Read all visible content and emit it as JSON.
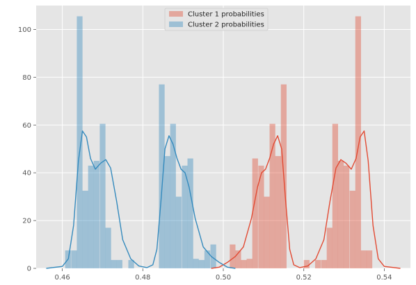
{
  "chart_data": {
    "type": "histogram",
    "style": "ggplot",
    "grid": true,
    "legend_placement": "upper-center",
    "xlim": [
      0.4535,
      0.5465
    ],
    "ylim": [
      0,
      110
    ],
    "x_ticks": [
      0.46,
      0.48,
      0.5,
      0.52,
      0.54
    ],
    "x_tick_labels": [
      "0.46",
      "0.48",
      "0.50",
      "0.52",
      "0.54"
    ],
    "y_ticks": [
      0,
      20,
      40,
      60,
      80,
      100
    ],
    "y_tick_labels": [
      "0",
      "20",
      "40",
      "60",
      "80",
      "100"
    ],
    "bin_width": 0.00142,
    "series": [
      {
        "name": "Cluster 1 probabilities",
        "color": "#E24A33",
        "bins": [
          {
            "x0": 0.5016,
            "height": 10
          },
          {
            "x0": 0.503,
            "height": 7.5
          },
          {
            "x0": 0.5044,
            "height": 3.5
          },
          {
            "x0": 0.5058,
            "height": 4
          },
          {
            "x0": 0.5072,
            "height": 46
          },
          {
            "x0": 0.5087,
            "height": 43
          },
          {
            "x0": 0.5101,
            "height": 30
          },
          {
            "x0": 0.5115,
            "height": 60.5
          },
          {
            "x0": 0.5129,
            "height": 47
          },
          {
            "x0": 0.5143,
            "height": 77
          },
          {
            "x0": 0.52,
            "height": 3.5
          },
          {
            "x0": 0.5228,
            "height": 3.5
          },
          {
            "x0": 0.5243,
            "height": 3.5
          },
          {
            "x0": 0.5257,
            "height": 17
          },
          {
            "x0": 0.5271,
            "height": 60.5
          },
          {
            "x0": 0.5285,
            "height": 45
          },
          {
            "x0": 0.5299,
            "height": 43
          },
          {
            "x0": 0.5314,
            "height": 32.5
          },
          {
            "x0": 0.5328,
            "height": 105.5
          },
          {
            "x0": 0.5342,
            "height": 7.5
          },
          {
            "x0": 0.5356,
            "height": 7.5
          }
        ],
        "kde": [
          [
            0.497,
            0
          ],
          [
            0.499,
            0.5
          ],
          [
            0.501,
            2.5
          ],
          [
            0.503,
            5
          ],
          [
            0.505,
            9
          ],
          [
            0.507,
            21
          ],
          [
            0.5085,
            34
          ],
          [
            0.5095,
            40
          ],
          [
            0.5105,
            41.5
          ],
          [
            0.5115,
            46
          ],
          [
            0.5125,
            52
          ],
          [
            0.5135,
            55.5
          ],
          [
            0.5145,
            50
          ],
          [
            0.5155,
            28
          ],
          [
            0.5165,
            8
          ],
          [
            0.5175,
            1.5
          ],
          [
            0.519,
            0.3
          ],
          [
            0.521,
            1
          ],
          [
            0.523,
            4
          ],
          [
            0.525,
            12
          ],
          [
            0.5265,
            28
          ],
          [
            0.528,
            42
          ],
          [
            0.5292,
            45.5
          ],
          [
            0.5305,
            44
          ],
          [
            0.5318,
            41.5
          ],
          [
            0.533,
            46
          ],
          [
            0.534,
            55
          ],
          [
            0.535,
            57.5
          ],
          [
            0.536,
            45
          ],
          [
            0.5372,
            18
          ],
          [
            0.5385,
            4
          ],
          [
            0.54,
            0.8
          ],
          [
            0.544,
            0
          ]
        ]
      },
      {
        "name": "Cluster 2 probabilities",
        "color": "#348ABD",
        "bins": [
          {
            "x0": 0.4607,
            "height": 7.5
          },
          {
            "x0": 0.4622,
            "height": 7.5
          },
          {
            "x0": 0.4636,
            "height": 105.5
          },
          {
            "x0": 0.465,
            "height": 32.5
          },
          {
            "x0": 0.4664,
            "height": 43
          },
          {
            "x0": 0.4678,
            "height": 45
          },
          {
            "x0": 0.4693,
            "height": 60.5
          },
          {
            "x0": 0.4707,
            "height": 17
          },
          {
            "x0": 0.4721,
            "height": 3.5
          },
          {
            "x0": 0.4735,
            "height": 3.5
          },
          {
            "x0": 0.4764,
            "height": 3.5
          },
          {
            "x0": 0.484,
            "height": 77
          },
          {
            "x0": 0.4854,
            "height": 47
          },
          {
            "x0": 0.4868,
            "height": 60.5
          },
          {
            "x0": 0.4882,
            "height": 30
          },
          {
            "x0": 0.4897,
            "height": 43
          },
          {
            "x0": 0.4911,
            "height": 46
          },
          {
            "x0": 0.4925,
            "height": 4
          },
          {
            "x0": 0.4939,
            "height": 3.5
          },
          {
            "x0": 0.4953,
            "height": 7.5
          },
          {
            "x0": 0.4968,
            "height": 10
          }
        ],
        "kde": [
          [
            0.456,
            0
          ],
          [
            0.46,
            0.8
          ],
          [
            0.4615,
            4
          ],
          [
            0.4628,
            18
          ],
          [
            0.464,
            45
          ],
          [
            0.465,
            57.5
          ],
          [
            0.466,
            55
          ],
          [
            0.467,
            46
          ],
          [
            0.4682,
            41.5
          ],
          [
            0.4695,
            44
          ],
          [
            0.4708,
            45.5
          ],
          [
            0.472,
            42
          ],
          [
            0.4735,
            28
          ],
          [
            0.475,
            12
          ],
          [
            0.477,
            4
          ],
          [
            0.479,
            1
          ],
          [
            0.481,
            0.3
          ],
          [
            0.4825,
            1.5
          ],
          [
            0.4835,
            8
          ],
          [
            0.4845,
            28
          ],
          [
            0.4855,
            50
          ],
          [
            0.4865,
            55.5
          ],
          [
            0.4875,
            52
          ],
          [
            0.4885,
            46
          ],
          [
            0.4895,
            41.5
          ],
          [
            0.4905,
            40
          ],
          [
            0.4915,
            34
          ],
          [
            0.493,
            21
          ],
          [
            0.495,
            9
          ],
          [
            0.497,
            5
          ],
          [
            0.499,
            2.5
          ],
          [
            0.501,
            0.5
          ],
          [
            0.503,
            0
          ]
        ]
      }
    ]
  }
}
